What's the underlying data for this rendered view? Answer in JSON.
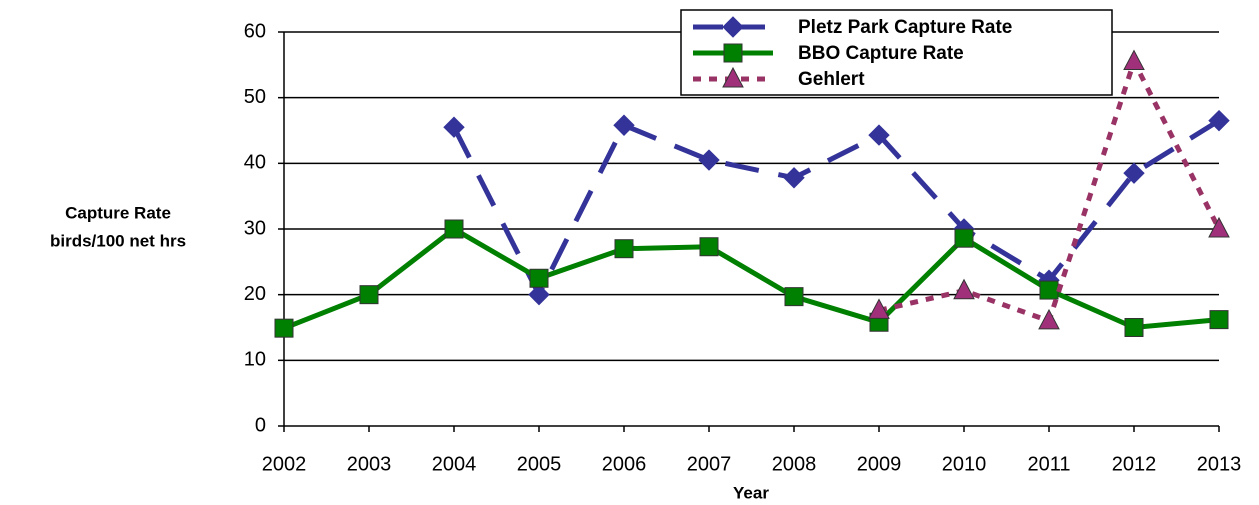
{
  "chart_data": {
    "type": "line",
    "categories": [
      "2002",
      "2003",
      "2004",
      "2005",
      "2006",
      "2007",
      "2008",
      "2009",
      "2010",
      "2011",
      "2012",
      "2013"
    ],
    "series": [
      {
        "name": "Pletz Park Capture Rate",
        "color": "#333399",
        "line_style": "dashed",
        "marker": "diamond",
        "values": [
          null,
          null,
          45.5,
          20,
          45.8,
          40.5,
          37.8,
          44.3,
          30,
          22.2,
          38.5,
          46.5
        ]
      },
      {
        "name": "BBO Capture Rate",
        "color": "#008000",
        "line_style": "solid",
        "marker": "square",
        "values": [
          14.9,
          20,
          30,
          22.5,
          27,
          27.3,
          19.7,
          15.8,
          28.6,
          20.7,
          15,
          16.2
        ]
      },
      {
        "name": "Gehlert",
        "color": "#993366",
        "line_style": "dotted",
        "marker": "triangle",
        "values": [
          null,
          null,
          null,
          null,
          null,
          null,
          null,
          17.6,
          20.6,
          16,
          55.5,
          30
        ]
      }
    ],
    "xlabel": "Year",
    "ylabel": [
      "Capture Rate",
      "birds/100 net hrs"
    ],
    "ylim": [
      0,
      60
    ],
    "yticks": [
      0,
      10,
      20,
      30,
      40,
      50,
      60
    ],
    "grid": true,
    "legend": "top-right"
  }
}
